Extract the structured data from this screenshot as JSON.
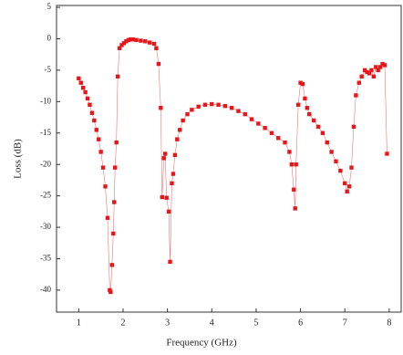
{
  "chart_data": {
    "type": "scatter",
    "xlabel": "Frequency (GHz)",
    "ylabel": "Loss (dB)",
    "xlim": [
      0.5,
      8.27
    ],
    "ylim": [
      -43.5,
      5.3
    ],
    "xticks": [
      1,
      2,
      3,
      4,
      5,
      6,
      7,
      8
    ],
    "yticks": [
      5,
      0,
      -5,
      -10,
      -15,
      -20,
      -25,
      -30,
      -35,
      -40
    ],
    "series": [
      {
        "color": "#e8161a",
        "x": [
          1.0,
          1.05,
          1.1,
          1.15,
          1.2,
          1.25,
          1.3,
          1.35,
          1.4,
          1.45,
          1.5,
          1.55,
          1.6,
          1.65,
          1.7,
          1.72,
          1.75,
          1.78,
          1.8,
          1.82,
          1.85,
          1.88,
          1.92,
          1.97,
          2.02,
          2.07,
          2.12,
          2.17,
          2.22,
          2.3,
          2.4,
          2.5,
          2.6,
          2.7,
          2.75,
          2.8,
          2.85,
          2.88,
          2.92,
          2.95,
          2.98,
          3.03,
          3.06,
          3.1,
          3.13,
          3.17,
          3.22,
          3.28,
          3.35,
          3.45,
          3.55,
          3.7,
          3.85,
          4.0,
          4.15,
          4.3,
          4.45,
          4.6,
          4.75,
          4.9,
          5.05,
          5.2,
          5.35,
          5.5,
          5.65,
          5.75,
          5.8,
          5.85,
          5.88,
          5.9,
          5.95,
          6.0,
          6.05,
          6.1,
          6.15,
          6.2,
          6.3,
          6.4,
          6.5,
          6.6,
          6.7,
          6.8,
          6.9,
          7.0,
          7.05,
          7.1,
          7.15,
          7.2,
          7.25,
          7.32,
          7.38,
          7.45,
          7.5,
          7.55,
          7.6,
          7.65,
          7.7,
          7.75,
          7.8,
          7.85,
          7.9,
          7.95
        ],
        "values": [
          -6.3,
          -7,
          -7.8,
          -8.5,
          -9.5,
          -10.5,
          -11.8,
          -13,
          -14.5,
          -16,
          -18,
          -20.5,
          -23.5,
          -28.5,
          -40,
          -40.3,
          -36,
          -31,
          -26,
          -20.5,
          -16.5,
          -6,
          -1.5,
          -1,
          -0.7,
          -0.4,
          -0.2,
          -0.1,
          -0.1,
          -0.2,
          -0.3,
          -0.4,
          -0.6,
          -0.8,
          -1.5,
          -4,
          -11,
          -25.2,
          -19,
          -18.3,
          -25.3,
          -27.5,
          -35.5,
          -23,
          -21.5,
          -18.5,
          -16,
          -14.5,
          -13,
          -12,
          -11.3,
          -10.8,
          -10.5,
          -10.4,
          -10.5,
          -10.7,
          -11,
          -11.5,
          -12,
          -12.8,
          -13.5,
          -14.2,
          -15,
          -15.8,
          -16.5,
          -18,
          -20,
          -24,
          -27,
          -20,
          -10.5,
          -7,
          -7.2,
          -9.5,
          -11,
          -12,
          -13,
          -14,
          -15,
          -16.5,
          -18,
          -19.5,
          -21,
          -23,
          -24.3,
          -23.5,
          -20.5,
          -14,
          -9,
          -7,
          -6,
          -5,
          -5.3,
          -5.5,
          -5,
          -6,
          -4.5,
          -5,
          -4.5,
          -4,
          -4.2,
          -18.3
        ]
      }
    ]
  }
}
